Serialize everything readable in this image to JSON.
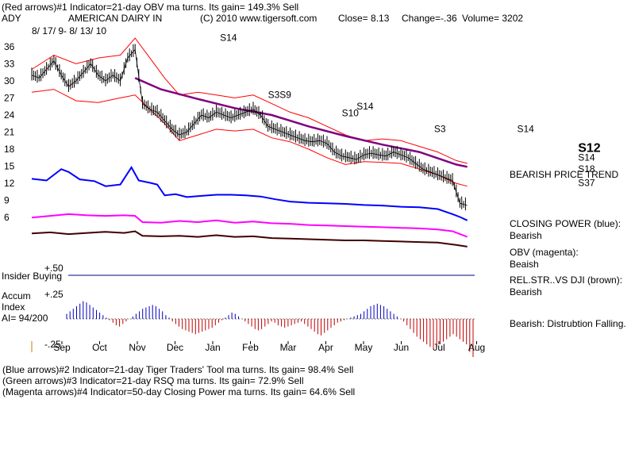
{
  "header": {
    "line1": "(Red arrows)#1 Indicator=21-day OBV ma turns. Its gain= 149.3% Sell",
    "ticker": "ADY",
    "company": "AMERICAN DAIRY IN",
    "copyright": "(C) 2010 www.tigersoft.com",
    "close": "Close=  8.13",
    "change": "Change=-.36",
    "volume": "Volume= 3202",
    "date_range": "8/ 17/ 9-  8/ 13/ 10"
  },
  "side_labels": {
    "trend": "BEARISH PRICE TREND",
    "closing_power": "CLOSING POWER (blue):\nBearish",
    "obv": "OBV (magenta):\nBeaish",
    "relstr": "REL.STR..VS DJI (brown):\nBearish",
    "accum": "Bearish: Distrubtion Falling."
  },
  "panel_labels": {
    "insider": "Insider Buying",
    "plus50": "+.50",
    "accum": "Accum\nIndex\nAI= 94/200",
    "plus25": "+.25",
    "minus25": "-.25"
  },
  "footer": {
    "line2": "(Blue arrows)#2 Indicator=21-day Tiger Traders' Tool ma turns. Its gain= 98.4% Sell",
    "line3": "(Green arrows)#3 Indicator=21-day RSQ ma turns. Its gain= 72.9% Sell",
    "line4": "(Magenta arrows)#4 Indicator=50-day Closing Power ma turns. Its gain= 64.6% Sell"
  },
  "colors": {
    "price": "#000000",
    "band": "#ff0000",
    "ma": "#800080",
    "closing_power": "#0000ff",
    "obv": "#ff00ff",
    "relstr": "#400000",
    "accum_pos": "#0000c0",
    "accum_neg": "#c00000",
    "insider_line": "#000080"
  },
  "chart_data": {
    "type": "line",
    "x_ticks": [
      "Sep",
      "Oct",
      "Nov",
      "Dec",
      "Jan",
      "Feb",
      "Mar",
      "Apr",
      "May",
      "Jun",
      "Jul",
      "Aug"
    ],
    "y_ticks": [
      36,
      33,
      30,
      27,
      24,
      21,
      18,
      15,
      12,
      9,
      6
    ],
    "ylim": [
      4.5,
      37.5
    ],
    "price_series": [
      [
        0,
        31
      ],
      [
        4,
        30.5
      ],
      [
        8,
        32
      ],
      [
        12,
        33.5
      ],
      [
        16,
        31
      ],
      [
        20,
        29
      ],
      [
        24,
        30
      ],
      [
        28,
        31.5
      ],
      [
        32,
        33
      ],
      [
        36,
        31
      ],
      [
        40,
        30
      ],
      [
        44,
        31
      ],
      [
        48,
        30
      ],
      [
        52,
        34
      ],
      [
        56,
        35.5
      ],
      [
        60,
        26
      ],
      [
        64,
        25
      ],
      [
        68,
        24.5
      ],
      [
        72,
        23
      ],
      [
        76,
        21.5
      ],
      [
        80,
        20.5
      ],
      [
        84,
        21
      ],
      [
        88,
        22.5
      ],
      [
        92,
        24
      ],
      [
        96,
        23.5
      ],
      [
        100,
        24.5
      ],
      [
        104,
        24
      ],
      [
        108,
        23.5
      ],
      [
        112,
        24
      ],
      [
        116,
        24.5
      ],
      [
        120,
        25
      ],
      [
        124,
        24
      ],
      [
        128,
        22
      ],
      [
        132,
        21.5
      ],
      [
        136,
        21
      ],
      [
        140,
        20.5
      ],
      [
        144,
        20
      ],
      [
        148,
        19.5
      ],
      [
        152,
        19.3
      ],
      [
        156,
        19.5
      ],
      [
        160,
        19
      ],
      [
        164,
        17.5
      ],
      [
        168,
        16.8
      ],
      [
        172,
        16.5
      ],
      [
        176,
        16.2
      ],
      [
        180,
        17
      ],
      [
        184,
        17.3
      ],
      [
        188,
        17
      ],
      [
        192,
        16.8
      ],
      [
        196,
        17.5
      ],
      [
        200,
        17
      ],
      [
        204,
        16.5
      ],
      [
        208,
        15.5
      ],
      [
        212,
        14.5
      ],
      [
        216,
        14
      ],
      [
        220,
        13.5
      ],
      [
        224,
        13
      ],
      [
        228,
        12.5
      ],
      [
        232,
        8.5
      ],
      [
        236,
        8.13
      ]
    ],
    "ma_series": [
      [
        56,
        30.5
      ],
      [
        70,
        28.5
      ],
      [
        90,
        26.8
      ],
      [
        110,
        25.2
      ],
      [
        130,
        24
      ],
      [
        150,
        22
      ],
      [
        170,
        20.3
      ],
      [
        190,
        18.8
      ],
      [
        210,
        17.5
      ],
      [
        230,
        15.3
      ],
      [
        236,
        14.9
      ]
    ],
    "upper_band": [
      [
        0,
        32
      ],
      [
        12,
        34.5
      ],
      [
        24,
        33
      ],
      [
        36,
        34
      ],
      [
        48,
        34.5
      ],
      [
        56,
        37.5
      ],
      [
        64,
        34
      ],
      [
        72,
        30.5
      ],
      [
        80,
        27.5
      ],
      [
        90,
        28
      ],
      [
        100,
        27.5
      ],
      [
        110,
        27
      ],
      [
        120,
        27.5
      ],
      [
        130,
        26
      ],
      [
        140,
        24.5
      ],
      [
        150,
        23.5
      ],
      [
        160,
        22
      ],
      [
        170,
        20.5
      ],
      [
        180,
        19.5
      ],
      [
        190,
        19.8
      ],
      [
        200,
        19.5
      ],
      [
        210,
        18.5
      ],
      [
        220,
        17.5
      ],
      [
        230,
        16
      ],
      [
        236,
        15.5
      ]
    ],
    "lower_band": [
      [
        0,
        28
      ],
      [
        12,
        28.5
      ],
      [
        24,
        26.5
      ],
      [
        36,
        26.2
      ],
      [
        48,
        27
      ],
      [
        56,
        27.5
      ],
      [
        64,
        25
      ],
      [
        72,
        22.5
      ],
      [
        80,
        19.5
      ],
      [
        90,
        20.5
      ],
      [
        100,
        21.5
      ],
      [
        110,
        21.2
      ],
      [
        120,
        21.5
      ],
      [
        130,
        20
      ],
      [
        140,
        19.3
      ],
      [
        150,
        18
      ],
      [
        160,
        16.5
      ],
      [
        170,
        15.3
      ],
      [
        180,
        15.8
      ],
      [
        190,
        15.7
      ],
      [
        200,
        15.5
      ],
      [
        210,
        14.5
      ],
      [
        220,
        13.5
      ],
      [
        230,
        12
      ],
      [
        236,
        11.5
      ]
    ],
    "closing_power": [
      [
        0,
        12.8
      ],
      [
        8,
        12.5
      ],
      [
        16,
        14.5
      ],
      [
        20,
        14
      ],
      [
        26,
        12.7
      ],
      [
        34,
        12.4
      ],
      [
        40,
        11.5
      ],
      [
        48,
        11.8
      ],
      [
        54,
        14.8
      ],
      [
        58,
        12.5
      ],
      [
        64,
        12.1
      ],
      [
        68,
        11.8
      ],
      [
        72,
        9.9
      ],
      [
        78,
        10.1
      ],
      [
        84,
        9.6
      ],
      [
        92,
        9.8
      ],
      [
        100,
        10
      ],
      [
        108,
        10
      ],
      [
        116,
        9.9
      ],
      [
        124,
        9.7
      ],
      [
        132,
        9.2
      ],
      [
        140,
        8.8
      ],
      [
        150,
        8.6
      ],
      [
        160,
        8.5
      ],
      [
        170,
        8.4
      ],
      [
        180,
        8.2
      ],
      [
        190,
        8.1
      ],
      [
        200,
        7.9
      ],
      [
        210,
        7.8
      ],
      [
        220,
        7.5
      ],
      [
        228,
        6.6
      ],
      [
        232,
        6.1
      ],
      [
        236,
        5.5
      ]
    ],
    "obv": [
      [
        0,
        6
      ],
      [
        10,
        6.3
      ],
      [
        20,
        6.6
      ],
      [
        30,
        6.4
      ],
      [
        40,
        6.3
      ],
      [
        50,
        6.4
      ],
      [
        56,
        6.3
      ],
      [
        60,
        5.2
      ],
      [
        70,
        5.1
      ],
      [
        80,
        5.4
      ],
      [
        90,
        5.2
      ],
      [
        100,
        5.5
      ],
      [
        110,
        5.1
      ],
      [
        120,
        5.3
      ],
      [
        130,
        5
      ],
      [
        140,
        4.9
      ],
      [
        150,
        4.7
      ],
      [
        160,
        4.6
      ],
      [
        170,
        4.5
      ],
      [
        180,
        4.4
      ],
      [
        190,
        4.3
      ],
      [
        200,
        4.2
      ],
      [
        210,
        4.1
      ],
      [
        220,
        3.9
      ],
      [
        228,
        3.6
      ],
      [
        236,
        2.6
      ]
    ],
    "relstr": [
      [
        0,
        3.2
      ],
      [
        10,
        3.4
      ],
      [
        20,
        3.1
      ],
      [
        30,
        3.3
      ],
      [
        40,
        3.5
      ],
      [
        50,
        3.3
      ],
      [
        56,
        3.6
      ],
      [
        60,
        2.8
      ],
      [
        70,
        2.7
      ],
      [
        80,
        2.8
      ],
      [
        90,
        2.6
      ],
      [
        100,
        2.9
      ],
      [
        110,
        2.6
      ],
      [
        120,
        2.7
      ],
      [
        130,
        2.4
      ],
      [
        140,
        2.3
      ],
      [
        150,
        2.2
      ],
      [
        160,
        2.1
      ],
      [
        170,
        2
      ],
      [
        180,
        2
      ],
      [
        190,
        1.9
      ],
      [
        200,
        1.8
      ],
      [
        210,
        1.7
      ],
      [
        220,
        1.6
      ],
      [
        230,
        1.2
      ],
      [
        236,
        0.9
      ]
    ],
    "accum_index": [
      4,
      6,
      8,
      10,
      12,
      14,
      13,
      11,
      9,
      7,
      5,
      3,
      1,
      -1,
      -3,
      -5,
      -6,
      -4,
      -2,
      0,
      2,
      4,
      6,
      8,
      9,
      10,
      11,
      10,
      8,
      6,
      3,
      1,
      -2,
      -4,
      -6,
      -8,
      -9,
      -10,
      -11,
      -12,
      -11,
      -10,
      -9,
      -8,
      -7,
      -5,
      -3,
      -1,
      1,
      3,
      5,
      4,
      2,
      0,
      -2,
      -4,
      -6,
      -8,
      -9,
      -8,
      -6,
      -4,
      -2,
      -3,
      -5,
      -6,
      -7,
      -6,
      -5,
      -4,
      -3,
      -2,
      -4,
      -6,
      -8,
      -10,
      -12,
      -13,
      -11,
      -9,
      -7,
      -5,
      -3,
      -2,
      -1,
      0,
      1,
      2,
      3,
      4,
      6,
      8,
      10,
      11,
      12,
      11,
      10,
      8,
      6,
      4,
      2,
      0,
      -2,
      -5,
      -8,
      -11,
      -14,
      -16,
      -18,
      -20,
      -22,
      -24,
      -22,
      -20,
      -18,
      -16,
      -14,
      -12,
      -14,
      -16,
      -18,
      -20,
      -26,
      -30
    ],
    "signals": [
      {
        "label": "S14",
        "x": 176,
        "y": 25
      },
      {
        "label": "S10",
        "x": 168,
        "y": 23.8
      },
      {
        "label": "S3S9",
        "x": 128,
        "y": 27
      },
      {
        "label": "S3",
        "x": 218,
        "y": 21
      },
      {
        "label": "S14",
        "x": 263,
        "y": 21
      },
      {
        "label": "S12",
        "x": 296,
        "y": 17.5
      },
      {
        "label": "S14",
        "x": 296,
        "y": 16
      },
      {
        "label": "S18",
        "x": 296,
        "y": 14
      },
      {
        "label": "S37",
        "x": 296,
        "y": 11.5
      },
      {
        "label": "S14",
        "x": 102,
        "y": 37
      }
    ]
  }
}
